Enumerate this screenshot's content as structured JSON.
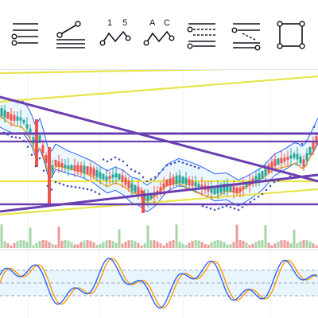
{
  "toolbar": {
    "tools": [
      {
        "name": "horizontal-lines-tool-icon",
        "glyph": "hlines"
      },
      {
        "name": "trend-channel-tool-icon",
        "glyph": "channel"
      },
      {
        "name": "elliott-wave-tool-icon",
        "glyph": "wave15",
        "labels": [
          "1",
          "5"
        ]
      },
      {
        "name": "abc-pattern-tool-icon",
        "glyph": "waveac",
        "labels": [
          "A",
          "C"
        ]
      },
      {
        "name": "pitchfork-tool-icon",
        "glyph": "pitch"
      },
      {
        "name": "fib-fan-tool-icon",
        "glyph": "fibfan"
      },
      {
        "name": "rectangle-tool-icon",
        "glyph": "rect"
      }
    ]
  },
  "colors": {
    "candle_up": "#26a69a",
    "candle_down": "#ef5350",
    "trendline_purple": "#6a3fb0",
    "trendline_yellow": "#e8e44a",
    "channel_blue": "#2962ff",
    "channel_fill": "#e3f2fd",
    "sar_dots": "#3f51b5",
    "moving_average": "#ff9800",
    "volume_up": "#a5d6a7",
    "volume_down": "#ef9a9a",
    "stoch_k": "#2962ff",
    "stoch_d": "#ff9800",
    "oscillator_band": "#e3f2fd"
  }
}
